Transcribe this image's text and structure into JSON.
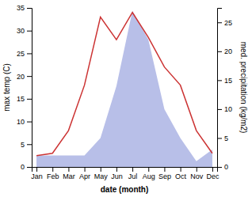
{
  "chart_data": {
    "type": "line",
    "categories": [
      "Jan",
      "Feb",
      "Mar",
      "Apr",
      "May",
      "Jun",
      "Jul",
      "Aug",
      "Sep",
      "Oct",
      "Nov",
      "Dec"
    ],
    "series": [
      {
        "type": "area",
        "color": "#b8bfe8",
        "axis": "y2",
        "values": [
          2.0,
          2.0,
          2.0,
          2.0,
          5.0,
          14.0,
          27.0,
          22.0,
          10.0,
          5.0,
          1.0,
          3.0
        ]
      },
      {
        "type": "line",
        "color": "#cc3333",
        "values": [
          2.5,
          3.0,
          8.0,
          18.0,
          33.0,
          28.0,
          34.0,
          28.5,
          22.0,
          18.0,
          8.0,
          3.0
        ]
      }
    ],
    "xlabel": "date (month)",
    "ylabel": "max temp (C)",
    "y2label": "med. precipitation (kg/m2)",
    "ylim": [
      0,
      35
    ],
    "yticks": [
      0,
      5,
      10,
      15,
      20,
      25,
      30,
      35
    ],
    "y2lim": [
      0,
      27.5
    ],
    "y2ticks": [
      0,
      5,
      10,
      15,
      20,
      25
    ],
    "grid": false
  }
}
